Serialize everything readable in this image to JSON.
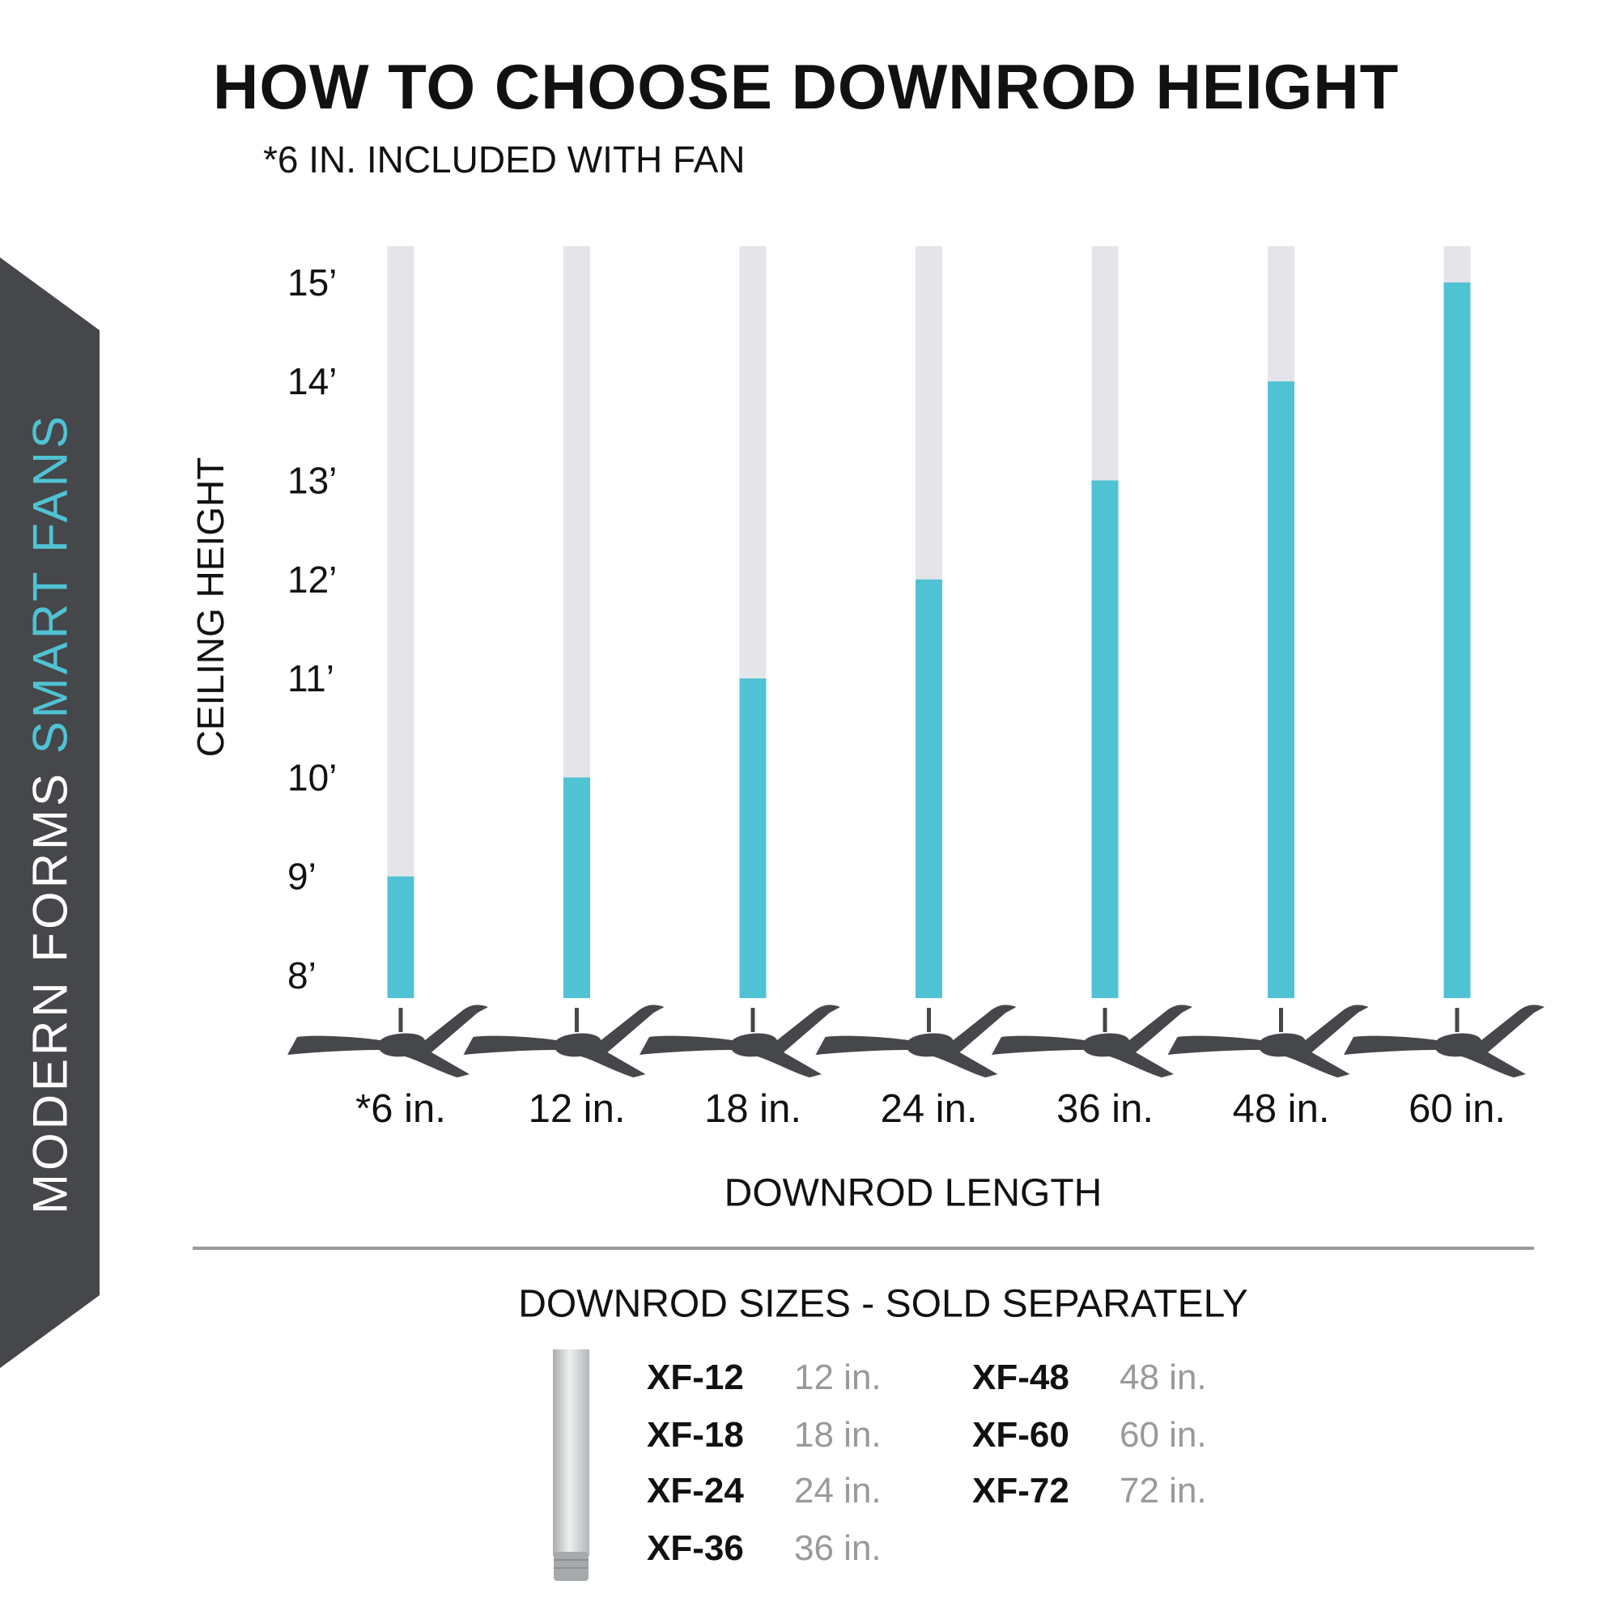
{
  "title": "HOW TO CHOOSE DOWNROD HEIGHT",
  "subtitle": "*6 IN. INCLUDED WITH FAN",
  "sidebar": {
    "brand_primary": "MODERN FORMS",
    "brand_accent": "SMART FANS",
    "background": "#46474a",
    "accent_color": "#4fc3d4"
  },
  "chart_data": {
    "type": "bar",
    "title": "HOW TO CHOOSE DOWNROD HEIGHT",
    "xlabel": "DOWNROD LENGTH",
    "ylabel": "CEILING HEIGHT",
    "categories": [
      "*6 in.",
      "12 in.",
      "18 in.",
      "24 in.",
      "36 in.",
      "48 in.",
      "60 in."
    ],
    "values": [
      9,
      10,
      11,
      12,
      13,
      14,
      15
    ],
    "yticks": [
      "15’",
      "14’",
      "13’",
      "12’",
      "11’",
      "10’",
      "9’",
      "8’"
    ],
    "ytick_values": [
      15,
      14,
      13,
      12,
      11,
      10,
      9,
      8
    ],
    "ylim": [
      8,
      15
    ],
    "grid": false,
    "bar_color": "#4fc3d4",
    "track_color": "#e4e5e9",
    "icon": "ceiling-fan-icon"
  },
  "sizes": {
    "title": "DOWNROD SIZES - SOLD SEPARATELY",
    "items": [
      {
        "code": "XF-12",
        "length": "12 in."
      },
      {
        "code": "XF-18",
        "length": "18 in."
      },
      {
        "code": "XF-24",
        "length": "24 in."
      },
      {
        "code": "XF-36",
        "length": "36 in."
      },
      {
        "code": "XF-48",
        "length": "48 in."
      },
      {
        "code": "XF-60",
        "length": "60 in."
      },
      {
        "code": "XF-72",
        "length": "72 in."
      }
    ]
  }
}
